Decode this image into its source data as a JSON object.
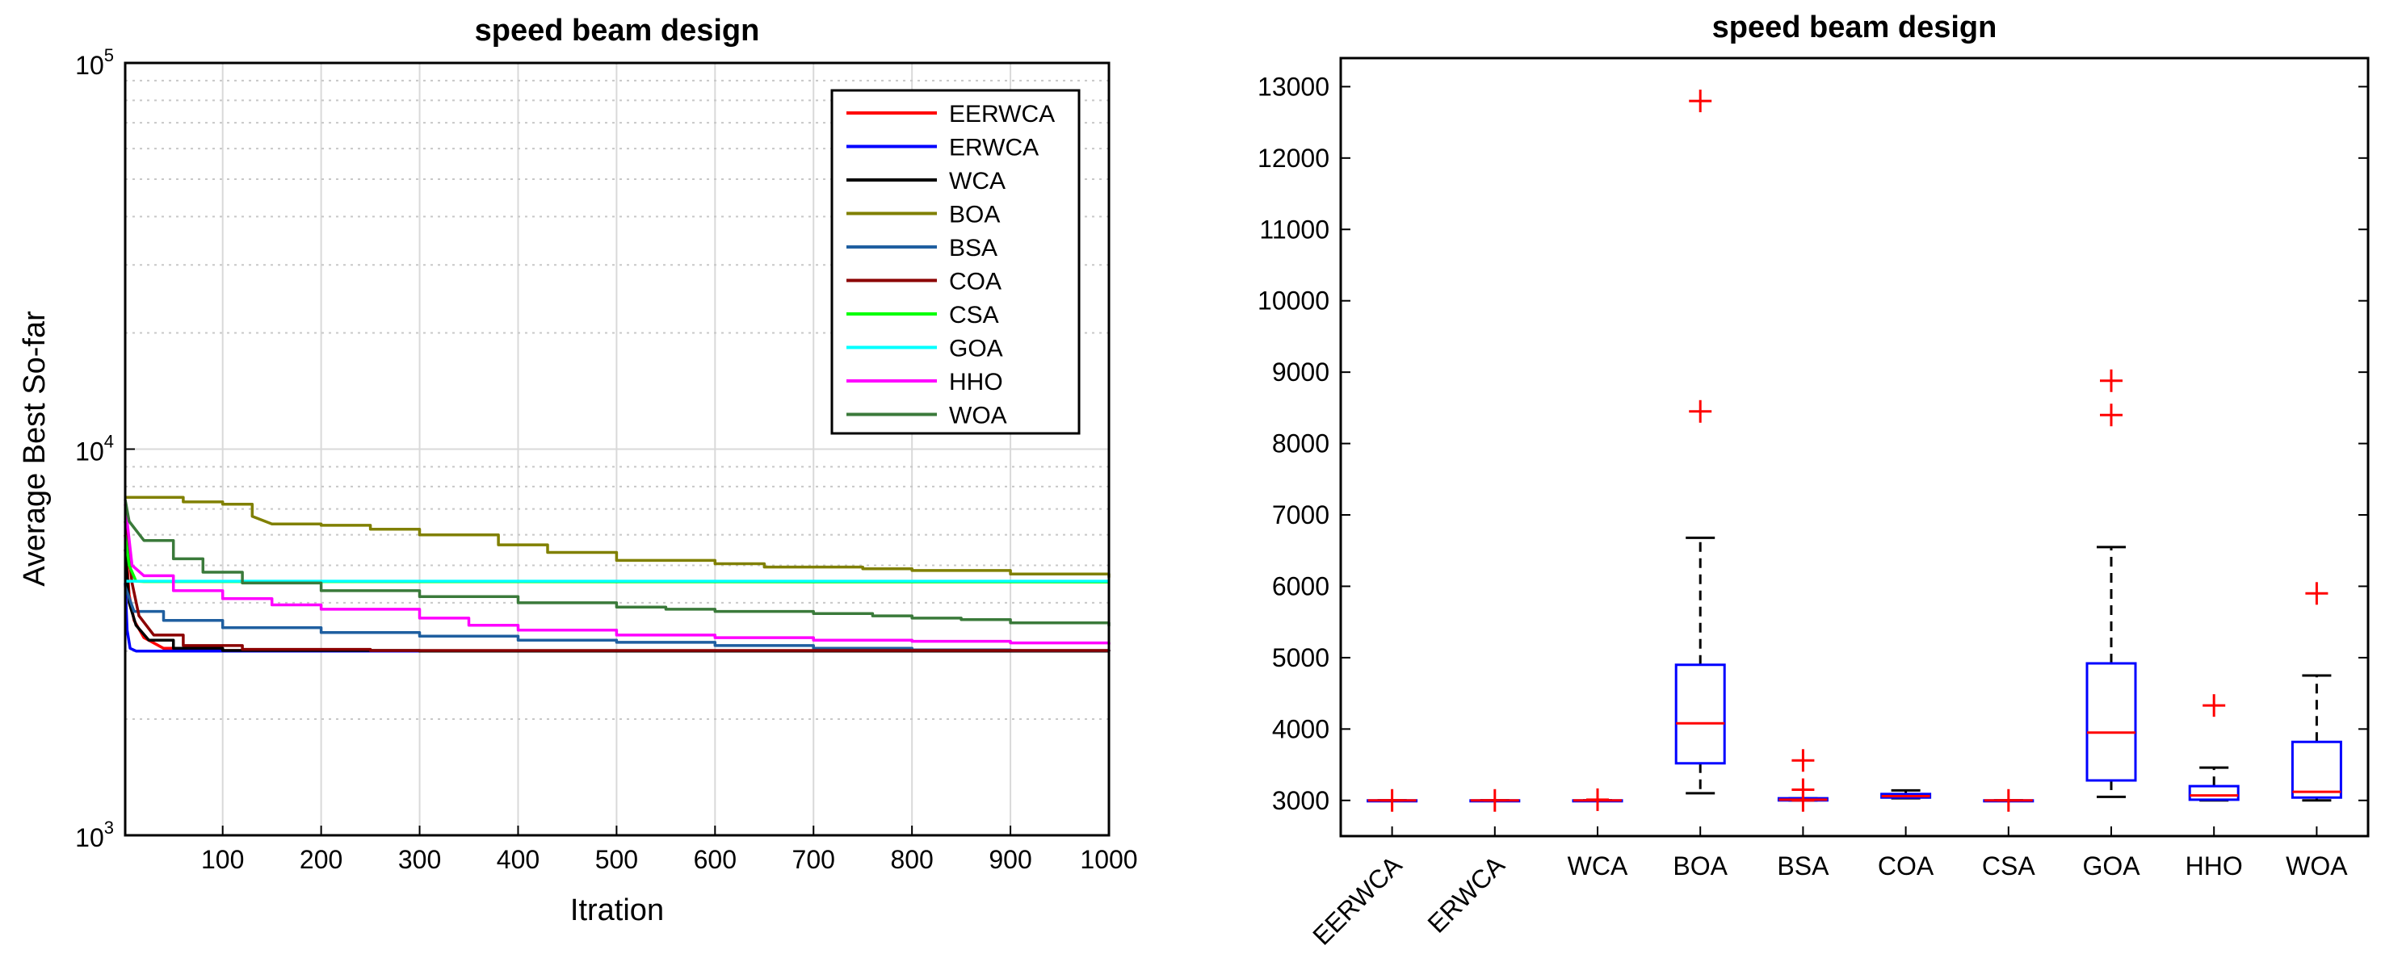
{
  "chart_data": [
    {
      "type": "line",
      "title": "speed beam design",
      "xlabel": "Itration",
      "ylabel": "Average Best So-far",
      "xlim": [
        1,
        1000
      ],
      "ylim": [
        1000,
        100000
      ],
      "yscale": "log",
      "xticks": [
        100,
        200,
        300,
        400,
        500,
        600,
        700,
        800,
        900,
        1000
      ],
      "yticks": [
        {
          "base": "10",
          "exp": "3",
          "value": 1000
        },
        {
          "base": "10",
          "exp": "4",
          "value": 10000
        },
        {
          "base": "10",
          "exp": "5",
          "value": 100000
        }
      ],
      "legend_position": "top-right",
      "grid": true,
      "series": [
        {
          "name": "EERWCA",
          "color": "#ff0000",
          "points": [
            [
              1,
              6000
            ],
            [
              5,
              4200
            ],
            [
              10,
              3600
            ],
            [
              20,
              3250
            ],
            [
              40,
              3050
            ],
            [
              80,
              3010
            ],
            [
              200,
              3000
            ],
            [
              1000,
              2996
            ]
          ]
        },
        {
          "name": "ERWCA",
          "color": "#0000ff",
          "points": [
            [
              1,
              4500
            ],
            [
              3,
              3400
            ],
            [
              6,
              3050
            ],
            [
              12,
              3000
            ],
            [
              1000,
              2996
            ]
          ]
        },
        {
          "name": "WCA",
          "color": "#000000",
          "points": [
            [
              1,
              5500
            ],
            [
              5,
              4000
            ],
            [
              12,
              3500
            ],
            [
              25,
              3200
            ],
            [
              50,
              3050
            ],
            [
              100,
              3010
            ],
            [
              300,
              3000
            ],
            [
              1000,
              2996
            ]
          ]
        },
        {
          "name": "BOA",
          "color": "#808000",
          "points": [
            [
              1,
              7500
            ],
            [
              60,
              7300
            ],
            [
              100,
              7200
            ],
            [
              130,
              6700
            ],
            [
              150,
              6400
            ],
            [
              200,
              6350
            ],
            [
              250,
              6200
            ],
            [
              300,
              6000
            ],
            [
              380,
              5650
            ],
            [
              430,
              5400
            ],
            [
              500,
              5150
            ],
            [
              600,
              5050
            ],
            [
              650,
              4950
            ],
            [
              750,
              4900
            ],
            [
              800,
              4850
            ],
            [
              900,
              4750
            ],
            [
              1000,
              4650
            ]
          ]
        },
        {
          "name": "BSA",
          "color": "#1f5fa0",
          "points": [
            [
              1,
              4400
            ],
            [
              10,
              3800
            ],
            [
              40,
              3600
            ],
            [
              100,
              3450
            ],
            [
              200,
              3350
            ],
            [
              300,
              3280
            ],
            [
              400,
              3200
            ],
            [
              500,
              3160
            ],
            [
              600,
              3100
            ],
            [
              700,
              3050
            ],
            [
              800,
              3020
            ],
            [
              900,
              3010
            ],
            [
              1000,
              3000
            ]
          ]
        },
        {
          "name": "COA",
          "color": "#8b0000",
          "points": [
            [
              1,
              6500
            ],
            [
              8,
              4500
            ],
            [
              15,
              3700
            ],
            [
              30,
              3300
            ],
            [
              60,
              3100
            ],
            [
              120,
              3030
            ],
            [
              250,
              3010
            ],
            [
              1000,
              3000
            ]
          ]
        },
        {
          "name": "CSA",
          "color": "#00ff00",
          "points": [
            [
              1,
              6000
            ],
            [
              5,
              5000
            ],
            [
              12,
              4550
            ],
            [
              20,
              4540
            ],
            [
              1000,
              4530
            ]
          ]
        },
        {
          "name": "GOA",
          "color": "#00ffff",
          "points": [
            [
              1,
              4550
            ],
            [
              1000,
              4550
            ]
          ]
        },
        {
          "name": "HHO",
          "color": "#ff00ff",
          "points": [
            [
              1,
              7200
            ],
            [
              8,
              5000
            ],
            [
              20,
              4700
            ],
            [
              50,
              4300
            ],
            [
              100,
              4100
            ],
            [
              150,
              3950
            ],
            [
              200,
              3850
            ],
            [
              300,
              3650
            ],
            [
              350,
              3500
            ],
            [
              400,
              3400
            ],
            [
              500,
              3300
            ],
            [
              600,
              3250
            ],
            [
              700,
              3200
            ],
            [
              800,
              3180
            ],
            [
              900,
              3150
            ],
            [
              1000,
              3120
            ]
          ]
        },
        {
          "name": "WOA",
          "color": "#3a7a3a",
          "points": [
            [
              1,
              7400
            ],
            [
              5,
              6500
            ],
            [
              20,
              5800
            ],
            [
              50,
              5200
            ],
            [
              80,
              4800
            ],
            [
              120,
              4500
            ],
            [
              200,
              4300
            ],
            [
              300,
              4150
            ],
            [
              400,
              4000
            ],
            [
              500,
              3900
            ],
            [
              550,
              3850
            ],
            [
              600,
              3800
            ],
            [
              700,
              3750
            ],
            [
              760,
              3700
            ],
            [
              800,
              3650
            ],
            [
              850,
              3620
            ],
            [
              900,
              3550
            ],
            [
              1000,
              3480
            ]
          ]
        }
      ]
    },
    {
      "type": "box",
      "title": "speed beam design",
      "ylim": [
        2500,
        13400
      ],
      "yticks": [
        3000,
        4000,
        5000,
        6000,
        7000,
        8000,
        9000,
        10000,
        11000,
        12000,
        13000
      ],
      "categories": [
        "EERWCA",
        "ERWCA",
        "WCA",
        "BOA",
        "BSA",
        "COA",
        "CSA",
        "GOA",
        "HHO",
        "WOA"
      ],
      "rotated_categories": [
        "EERWCA",
        "ERWCA"
      ],
      "boxes": [
        {
          "name": "EERWCA",
          "min": 3000,
          "q1": 3000,
          "median": 3000,
          "q3": 3000,
          "max": 3000,
          "outliers": [
            3000
          ]
        },
        {
          "name": "ERWCA",
          "min": 3000,
          "q1": 3000,
          "median": 3000,
          "q3": 3000,
          "max": 3000,
          "outliers": [
            3000
          ]
        },
        {
          "name": "WCA",
          "min": 3000,
          "q1": 3000,
          "median": 3000,
          "q3": 3000,
          "max": 3000,
          "outliers": [
            3010
          ]
        },
        {
          "name": "BOA",
          "min": 3100,
          "q1": 3520,
          "median": 4080,
          "q3": 4900,
          "max": 6680,
          "outliers": [
            8450,
            12800
          ]
        },
        {
          "name": "BSA",
          "min": 3000,
          "q1": 3000,
          "median": 3010,
          "q3": 3030,
          "max": 3030,
          "outliers": [
            3000,
            3150,
            3560
          ]
        },
        {
          "name": "COA",
          "min": 3030,
          "q1": 3040,
          "median": 3060,
          "q3": 3090,
          "max": 3140,
          "outliers": []
        },
        {
          "name": "CSA",
          "min": 3000,
          "q1": 3000,
          "median": 3000,
          "q3": 3000,
          "max": 3000,
          "outliers": [
            3000
          ]
        },
        {
          "name": "GOA",
          "min": 3050,
          "q1": 3280,
          "median": 3950,
          "q3": 4920,
          "max": 6550,
          "outliers": [
            8400,
            8880
          ]
        },
        {
          "name": "HHO",
          "min": 3000,
          "q1": 3010,
          "median": 3070,
          "q3": 3200,
          "max": 3460,
          "outliers": [
            4330
          ]
        },
        {
          "name": "WOA",
          "min": 3000,
          "q1": 3040,
          "median": 3120,
          "q3": 3820,
          "max": 4750,
          "outliers": [
            5900
          ]
        }
      ]
    }
  ]
}
